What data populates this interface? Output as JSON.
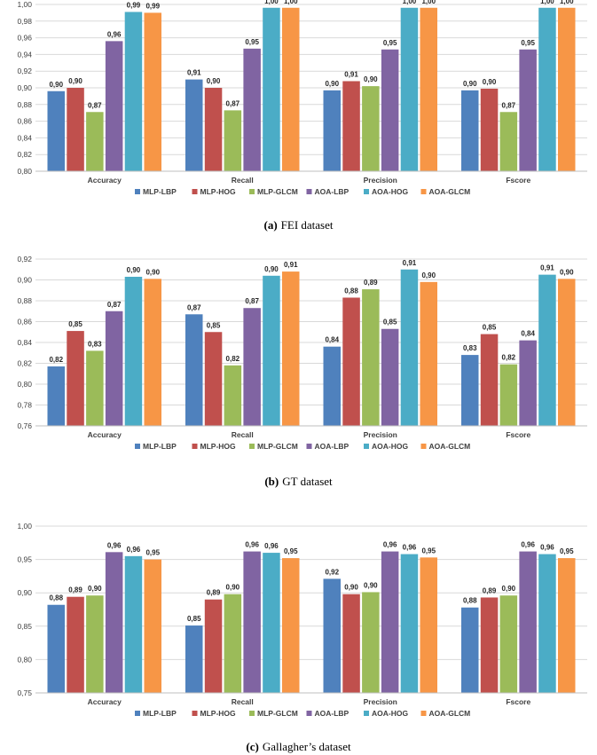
{
  "legend": [
    "MLP-LBP",
    "MLP-HOG",
    "MLP-GLCM",
    "AOA-LBP",
    "AOA-HOG",
    "AOA-GLCM"
  ],
  "colors": [
    "#4f81bd",
    "#c0504d",
    "#9bbb59",
    "#8064a2",
    "#4bacc6",
    "#f79646"
  ],
  "chart_data": [
    {
      "type": "bar",
      "caption_label": "(a)",
      "caption_text": "FEI dataset",
      "categories": [
        "Accuracy",
        "Recall",
        "Precision",
        "Fscore"
      ],
      "ylim": [
        0.8,
        1.0
      ],
      "ystep": 0.02,
      "ydecimals": 2,
      "series": [
        {
          "name": "MLP-LBP",
          "values": [
            0.896,
            0.91,
            0.897,
            0.897
          ],
          "labels": [
            "0,90",
            "0,91",
            "0,90",
            "0,90"
          ]
        },
        {
          "name": "MLP-HOG",
          "values": [
            0.9,
            0.9,
            0.908,
            0.899
          ],
          "labels": [
            "0,90",
            "0,90",
            "0,91",
            "0,90"
          ]
        },
        {
          "name": "MLP-GLCM",
          "values": [
            0.871,
            0.873,
            0.902,
            0.871
          ],
          "labels": [
            "0,87",
            "0,87",
            "0,90",
            "0,87"
          ]
        },
        {
          "name": "AOA-LBP",
          "values": [
            0.956,
            0.947,
            0.946,
            0.946
          ],
          "labels": [
            "0,96",
            "0,95",
            "0,95",
            "0,95"
          ]
        },
        {
          "name": "AOA-HOG",
          "values": [
            0.991,
            0.996,
            0.996,
            0.996
          ],
          "labels": [
            "0,99",
            "1,00",
            "1,00",
            "1,00"
          ]
        },
        {
          "name": "AOA-GLCM",
          "values": [
            0.99,
            0.996,
            0.996,
            0.996
          ],
          "labels": [
            "0,99",
            "1,00",
            "1,00",
            "1,00"
          ]
        }
      ]
    },
    {
      "type": "bar",
      "caption_label": "(b)",
      "caption_text": "GT dataset",
      "categories": [
        "Accuracy",
        "Recall",
        "Precision",
        "Fscore"
      ],
      "ylim": [
        0.76,
        0.92
      ],
      "ystep": 0.02,
      "ydecimals": 2,
      "series": [
        {
          "name": "MLP-LBP",
          "values": [
            0.817,
            0.867,
            0.836,
            0.828
          ],
          "labels": [
            "0,82",
            "0,87",
            "0,84",
            "0,83"
          ]
        },
        {
          "name": "MLP-HOG",
          "values": [
            0.851,
            0.85,
            0.883,
            0.848
          ],
          "labels": [
            "0,85",
            "0,85",
            "0,88",
            "0,85"
          ]
        },
        {
          "name": "MLP-GLCM",
          "values": [
            0.832,
            0.818,
            0.891,
            0.819
          ],
          "labels": [
            "0,83",
            "0,82",
            "0,89",
            "0,82"
          ]
        },
        {
          "name": "AOA-LBP",
          "values": [
            0.87,
            0.873,
            0.853,
            0.842
          ],
          "labels": [
            "0,87",
            "0,87",
            "0,85",
            "0,84"
          ]
        },
        {
          "name": "AOA-HOG",
          "values": [
            0.903,
            0.904,
            0.91,
            0.905
          ],
          "labels": [
            "0,90",
            "0,90",
            "0,91",
            "0,91"
          ]
        },
        {
          "name": "AOA-GLCM",
          "values": [
            0.901,
            0.908,
            0.898,
            0.901
          ],
          "labels": [
            "0,90",
            "0,91",
            "0,90",
            "0,90"
          ]
        }
      ]
    },
    {
      "type": "bar",
      "caption_label": "(c)",
      "caption_text": "Gallagher’s dataset",
      "categories": [
        "Accuracy",
        "Recall",
        "Precision",
        "Fscore"
      ],
      "ylim": [
        0.75,
        1.0
      ],
      "ystep": 0.05,
      "ydecimals": 2,
      "series": [
        {
          "name": "MLP-LBP",
          "values": [
            0.882,
            0.851,
            0.921,
            0.878
          ],
          "labels": [
            "0,88",
            "0,85",
            "0,92",
            "0,88"
          ]
        },
        {
          "name": "MLP-HOG",
          "values": [
            0.894,
            0.89,
            0.898,
            0.893
          ],
          "labels": [
            "0,89",
            "0,89",
            "0,90",
            "0,89"
          ]
        },
        {
          "name": "MLP-GLCM",
          "values": [
            0.896,
            0.898,
            0.901,
            0.896
          ],
          "labels": [
            "0,90",
            "0,90",
            "0,90",
            "0,90"
          ]
        },
        {
          "name": "AOA-LBP",
          "values": [
            0.961,
            0.962,
            0.962,
            0.962
          ],
          "labels": [
            "0,96",
            "0,96",
            "0,96",
            "0,96"
          ]
        },
        {
          "name": "AOA-HOG",
          "values": [
            0.955,
            0.96,
            0.958,
            0.958
          ],
          "labels": [
            "0,96",
            "0,96",
            "0,96",
            "0,96"
          ]
        },
        {
          "name": "AOA-GLCM",
          "values": [
            0.95,
            0.952,
            0.953,
            0.952
          ],
          "labels": [
            "0,95",
            "0,95",
            "0,95",
            "0,95"
          ]
        }
      ]
    }
  ]
}
